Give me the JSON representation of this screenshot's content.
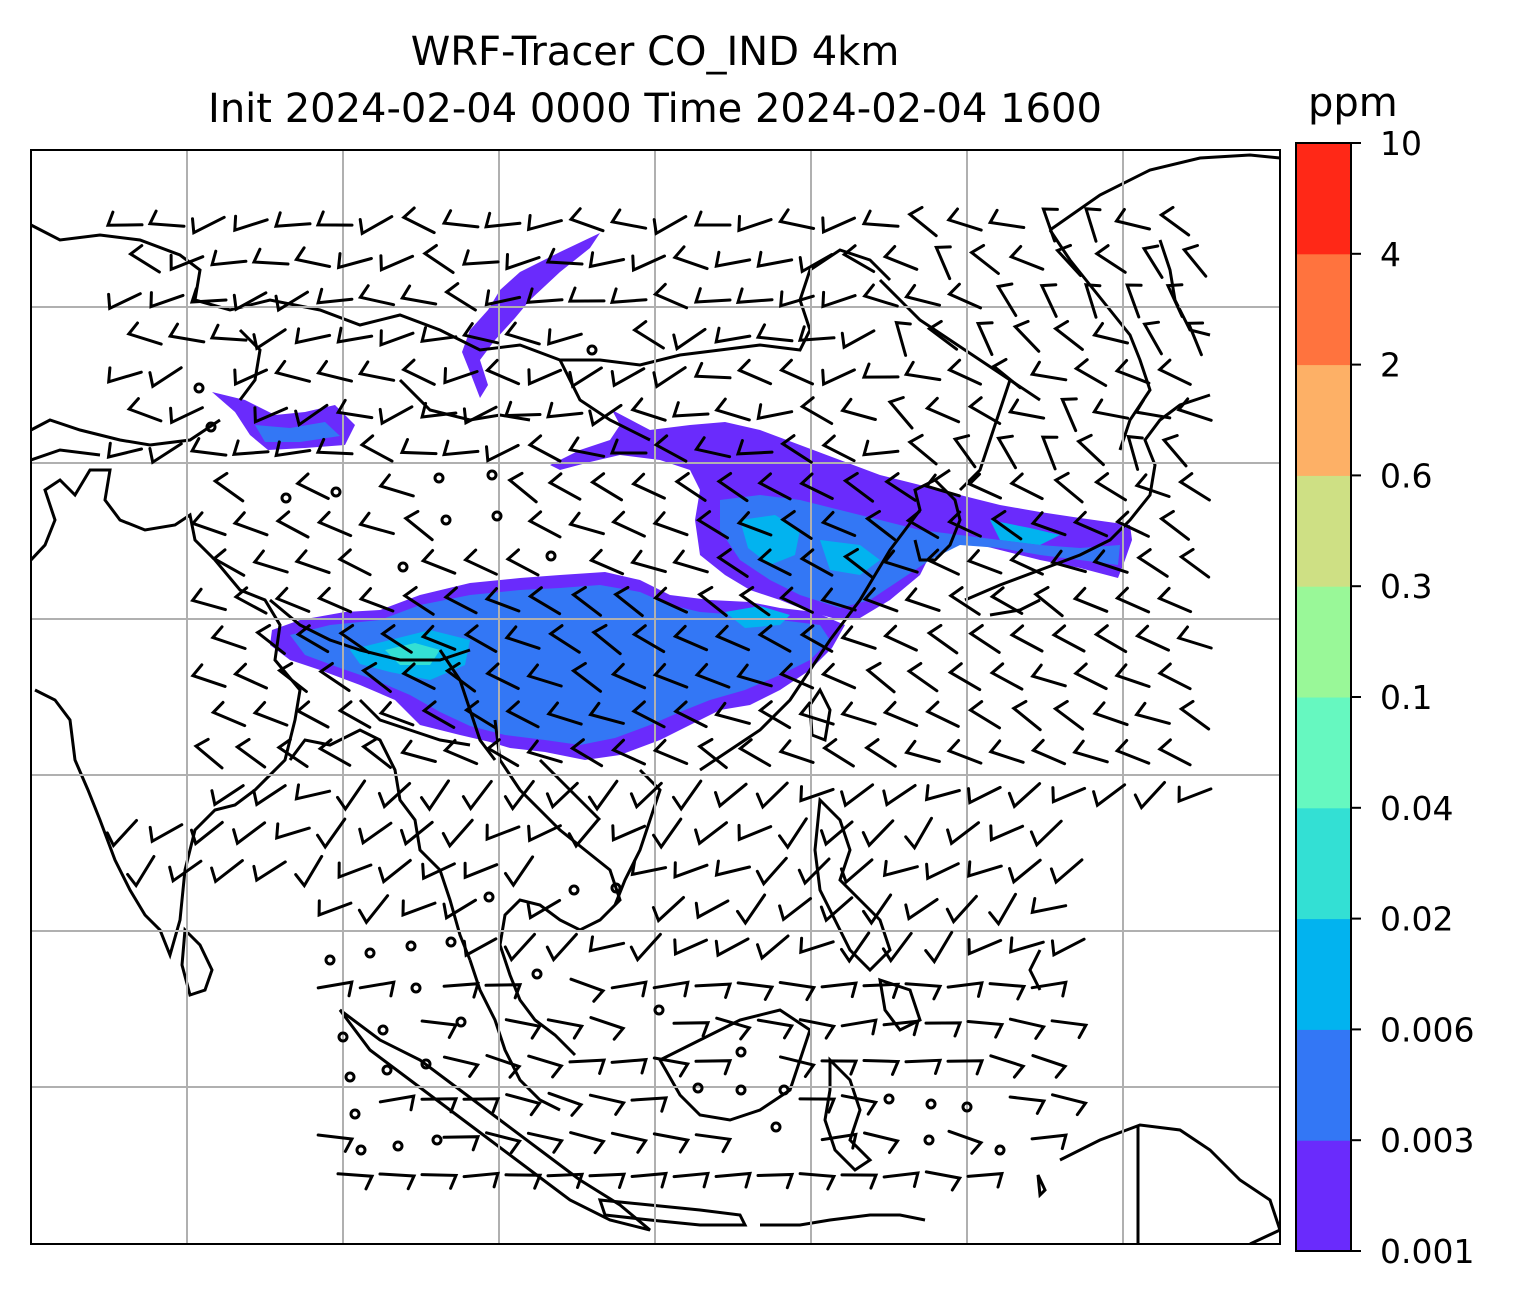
{
  "map": {
    "title_line1": "WRF-Tracer CO_IND 4km",
    "title_line2": "Init 2024-02-04 0000 Time 2024-02-04 1600"
  },
  "colorbar": {
    "unit": "ppm",
    "ticks": [
      "0.001",
      "0.003",
      "0.006",
      "0.02",
      "0.04",
      "0.1",
      "0.3",
      "0.6",
      "2",
      "4",
      "10"
    ],
    "colors": [
      "#6a2bfc",
      "#3377f5",
      "#02b3ef",
      "#33e0d4",
      "#66f8c0",
      "#99f898",
      "#cee084",
      "#fdb066",
      "#ff733e",
      "#ff2817"
    ]
  },
  "style": {
    "plume_colors": {
      "outer": "#6a2bfc",
      "mid": "#3377f5",
      "inner": "#02b3ef",
      "core": "#33e0d4"
    },
    "grid_color": "#b0b0b0",
    "line_color": "#000000"
  }
}
